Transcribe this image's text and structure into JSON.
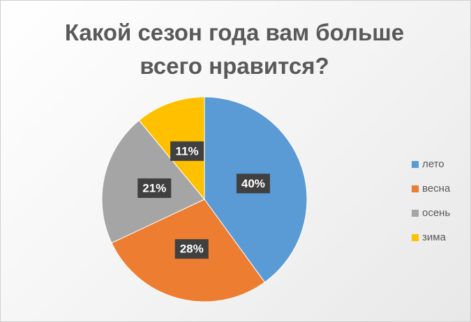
{
  "chart_data": {
    "type": "pie",
    "title": "Какой сезон года вам больше всего нравится?",
    "categories": [
      "лето",
      "весна",
      "осень",
      "зима"
    ],
    "values": [
      40,
      28,
      21,
      11
    ],
    "value_labels": [
      "40%",
      "28%",
      "21%",
      "11%"
    ],
    "colors": [
      "#5b9bd5",
      "#ed7d31",
      "#a5a5a5",
      "#ffc000"
    ],
    "legend": "right"
  }
}
